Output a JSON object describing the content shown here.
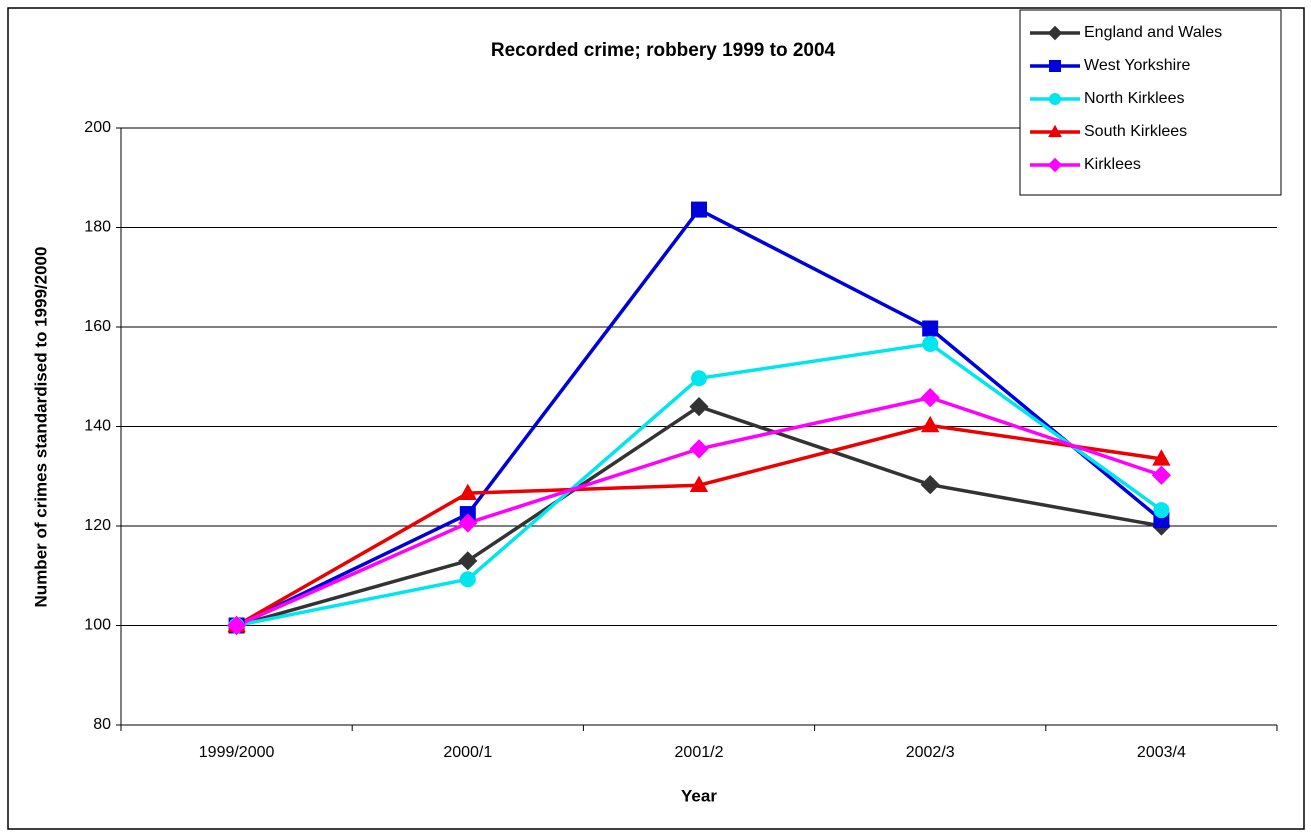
{
  "chart_data": {
    "type": "line",
    "title": "Recorded crime; robbery 1999 to 2004",
    "x_label": "Year",
    "y_label": "Number of crimes standardised to 1999/2000",
    "categories": [
      "1999/2000",
      "2000/1",
      "2001/2",
      "2002/3",
      "2003/4"
    ],
    "series": [
      {
        "name": "England and Wales",
        "color": "#333333",
        "marker": "diamond",
        "values": [
          100,
          113,
          144,
          128.3,
          120
        ]
      },
      {
        "name": "West Yorkshire",
        "color": "#0000dd",
        "marker": "square",
        "values": [
          100,
          122.4,
          183.6,
          159.7,
          121.2
        ]
      },
      {
        "name": "North Kirklees",
        "color": "#00e5ee",
        "marker": "circle",
        "values": [
          100,
          109.3,
          149.7,
          156.6,
          123.2
        ]
      },
      {
        "name": "South Kirklees",
        "color": "#ee0000",
        "marker": "triangle",
        "values": [
          100,
          126.6,
          128.2,
          140.2,
          133.5
        ]
      },
      {
        "name": "Kirklees",
        "color": "#ff00ff",
        "marker": "diamond",
        "values": [
          100,
          120.6,
          135.5,
          145.8,
          130.2
        ]
      }
    ],
    "ylim": [
      80,
      200
    ],
    "yticks": [
      80,
      100,
      120,
      140,
      160,
      180,
      200
    ],
    "grid": true,
    "legend": "top-right"
  }
}
